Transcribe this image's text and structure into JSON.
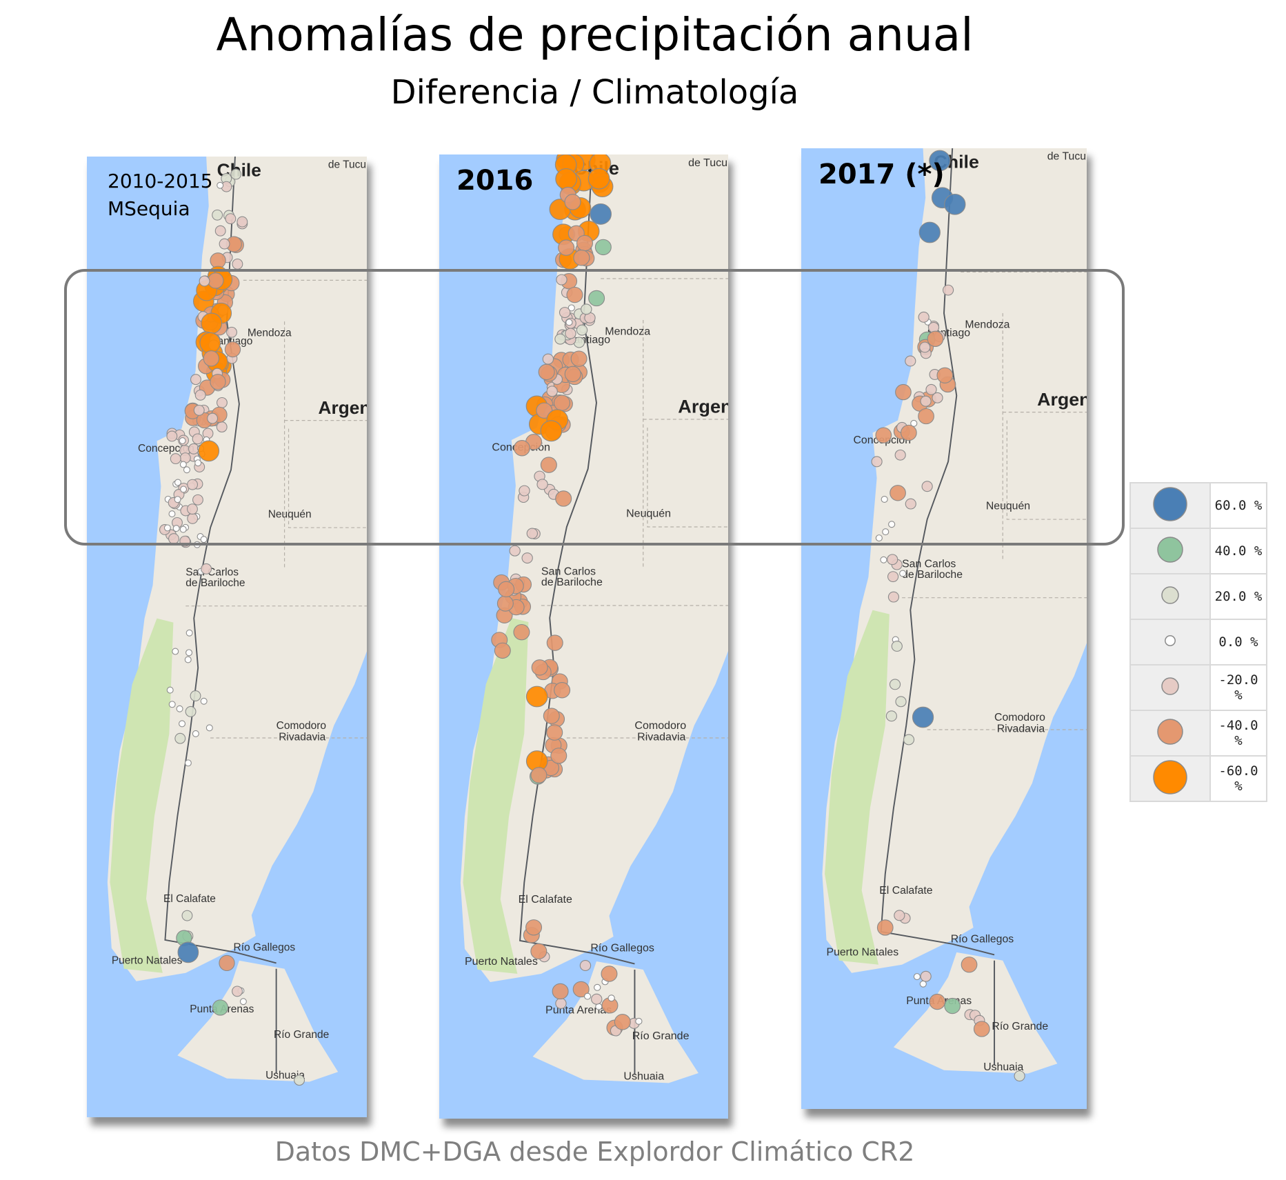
{
  "title": "Anomalías de precipitación anual",
  "subtitle": "Diferencia / Climatología",
  "footer": "Datos DMC+DGA desde Explordor Climático CR2",
  "panels": [
    {
      "line1": "2010-2015",
      "line2": "MSequia"
    },
    {
      "line1": "2016"
    },
    {
      "line1": "2017 (*)"
    }
  ],
  "map_labels": {
    "chile": "Chile",
    "tucuman": "de Tucu",
    "mendoza": "Mendoza",
    "santiago": "Santiago",
    "argentina": "Argen",
    "concepcion": "Concepción",
    "neuquen": "Neuquén",
    "bariloche_1": "San Carlos",
    "bariloche_2": "de Bariloche",
    "comodoro_1": "Comodoro",
    "comodoro_2": "Rivadavia",
    "calafate": "El Calafate",
    "gallegos": "Río Gallegos",
    "natales": "Puerto Natales",
    "punta": "Punta Arenas",
    "grande": "Río Grande",
    "ushuaia": "Ushuaia"
  },
  "legend": [
    {
      "label": "60.0 %",
      "value": 60,
      "color": "#4a7fb5"
    },
    {
      "label": "40.0 %",
      "value": 40,
      "color": "#8fc49e"
    },
    {
      "label": "20.0 %",
      "value": 20,
      "color": "#dcdfd0"
    },
    {
      "label": "0.0 %",
      "value": 0,
      "color": "#ffffff"
    },
    {
      "label": "-20.0 %",
      "value": -20,
      "color": "#e6cbc5"
    },
    {
      "label": "-40.0 %",
      "value": -40,
      "color": "#e49870"
    },
    {
      "label": "-60.0 %",
      "value": -60,
      "color": "#ff8a00"
    }
  ],
  "colors": {
    "ocean": "#a3ccff",
    "land": "#ede9e0",
    "frame": "#7a7a7a"
  }
}
